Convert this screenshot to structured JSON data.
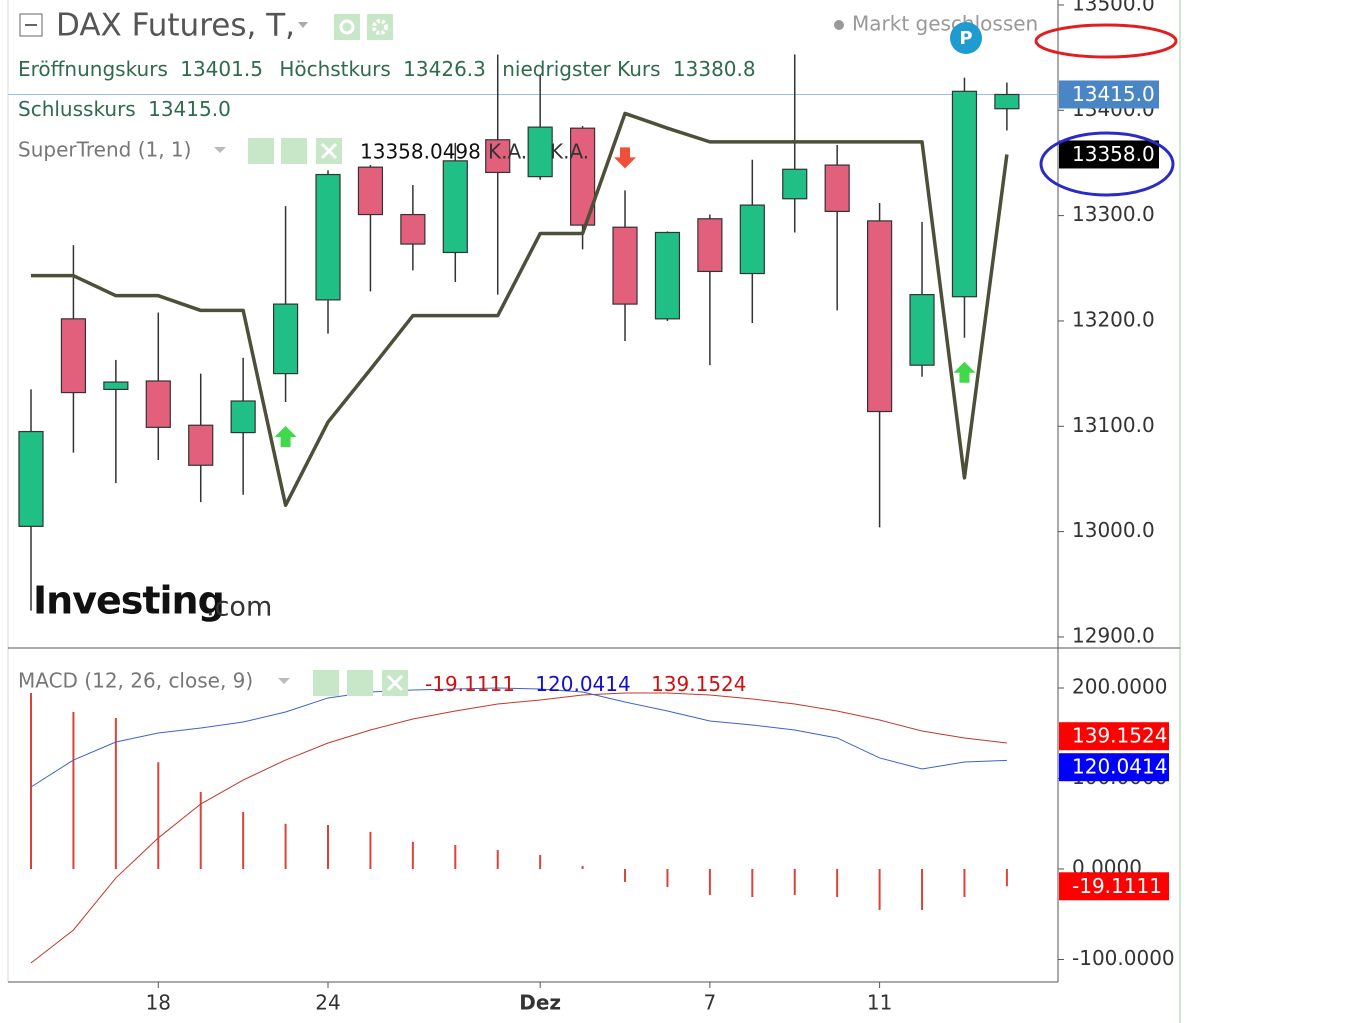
{
  "header": {
    "title": "DAX Futures, T,",
    "status": "Markt geschlossen",
    "marker": "P",
    "logo": [
      "Investing",
      ".com"
    ]
  },
  "chart_data": [
    {
      "type": "candlestick",
      "legend": [
        {
          "label": "Eröffnungskurs",
          "value": "13401.5"
        },
        {
          "label": "Höchstkurs",
          "value": "13426.3"
        },
        {
          "label": "niedrigster Kurs",
          "value": "13380.8"
        },
        {
          "label": "Schlusskurs",
          "value": "13415.0"
        }
      ],
      "categories": [
        null,
        null,
        null,
        "18",
        null,
        null,
        null,
        "24",
        null,
        null,
        null,
        null,
        "Dez",
        null,
        null,
        null,
        "7",
        null,
        null,
        null,
        "11",
        null,
        null,
        null
      ],
      "open": [
        13005,
        13202,
        13135,
        13143,
        13101,
        13094,
        13150,
        13220,
        13346,
        13301,
        13265,
        13372,
        13337,
        13383,
        13289,
        13202,
        13297,
        13245,
        13316,
        13348,
        13295,
        13158,
        13223,
        13401.5
      ],
      "high": [
        13135,
        13272,
        13163,
        13208,
        13150,
        13165,
        13309,
        13343,
        13348,
        13329,
        13369,
        13453,
        13434,
        13385,
        13324,
        13285,
        13301,
        13353,
        13453,
        13367,
        13312,
        13294,
        13431,
        13426.3
      ],
      "low": [
        12925,
        13075,
        13046,
        13068,
        13028,
        13035,
        13123,
        13188,
        13228,
        13248,
        13237,
        13225,
        13334,
        13268,
        13181,
        13200,
        13158,
        13198,
        13284,
        13210,
        13004,
        13147,
        13184,
        13380.8
      ],
      "close": [
        13095,
        13132,
        13142,
        13099,
        13063,
        13124,
        13216,
        13339,
        13301,
        13273,
        13352,
        13341,
        13384,
        13291,
        13216,
        13284,
        13247,
        13310,
        13344,
        13304,
        13114,
        13225,
        13418,
        13415
      ],
      "up_color": "#1fbf86",
      "down_color": "#e2607c",
      "series": [
        {
          "name": "SuperTrend (1, 1)",
          "color": "#4d4f38",
          "values": [
            13243,
            13243,
            13224,
            13224,
            13210,
            13210,
            13025,
            13104,
            13154,
            13205,
            13205,
            13205,
            13283,
            13283,
            13397,
            13383,
            13370,
            13370,
            13370,
            13370,
            13370,
            13370,
            13051,
            13358.0498
          ],
          "value_label": "13358.0498",
          "axis_label": "13358.0",
          "extra_labels": [
            "K.A.",
            "K.A."
          ],
          "signals_up": [
            6,
            22
          ],
          "signals_down": [
            14
          ]
        }
      ],
      "ylim": [
        12889.5,
        13504.7
      ],
      "yticks": [
        {
          "value": 12900,
          "label": "12900.0"
        },
        {
          "value": 13000,
          "label": "13000.0"
        },
        {
          "value": 13100,
          "label": "13100.0"
        },
        {
          "value": 13200,
          "label": "13200.0"
        },
        {
          "value": 13300,
          "label": "13300.0"
        },
        {
          "value": 13400,
          "label": "13400.0"
        },
        {
          "value": 13500,
          "label": "13500.0"
        }
      ]
    },
    {
      "type": "macd",
      "title": "MACD (12, 26, close, 9)",
      "histogram": {
        "color": "#d9443a",
        "value_label": "-19.1111",
        "values": [
          194.5,
          173.5,
          166.9,
          118,
          85,
          63,
          50,
          48.6,
          41,
          30,
          26.5,
          21,
          15.5,
          3.3,
          -14.4,
          -19.9,
          -28.7,
          -31,
          -28.7,
          -31,
          -45.3,
          -45.3,
          -31,
          -19.1111
        ]
      },
      "macd": {
        "color": "#3b63c9",
        "value_label": "120.0414",
        "values": [
          90.6,
          120.4,
          140.3,
          150.3,
          155.8,
          162.4,
          173.5,
          189,
          195.6,
          197.8,
          198.9,
          200,
          198.9,
          195.6,
          184.5,
          174.6,
          163.5,
          159.1,
          153.6,
          144.8,
          122.7,
          110.5,
          118.2,
          120.0414
        ]
      },
      "signal": {
        "color": "#c0392b",
        "value_label": "139.1524",
        "values": [
          -103.9,
          -67.4,
          -9.9,
          34.3,
          71.8,
          98.3,
          120.4,
          139.2,
          153.6,
          165.7,
          174.6,
          182.3,
          186.7,
          192.3,
          194.5,
          194.5,
          192.3,
          187.8,
          182.3,
          174.6,
          164.6,
          152.5,
          144.8,
          139.1524
        ]
      },
      "ylim": [
        -124.9,
        244.2
      ],
      "yticks": [
        {
          "value": 200,
          "label": "200.0000"
        },
        {
          "value": 100,
          "label": "100.0000"
        },
        {
          "value": 0,
          "label": "0.0000"
        },
        {
          "value": -100,
          "label": "-100.0000"
        }
      ]
    }
  ]
}
